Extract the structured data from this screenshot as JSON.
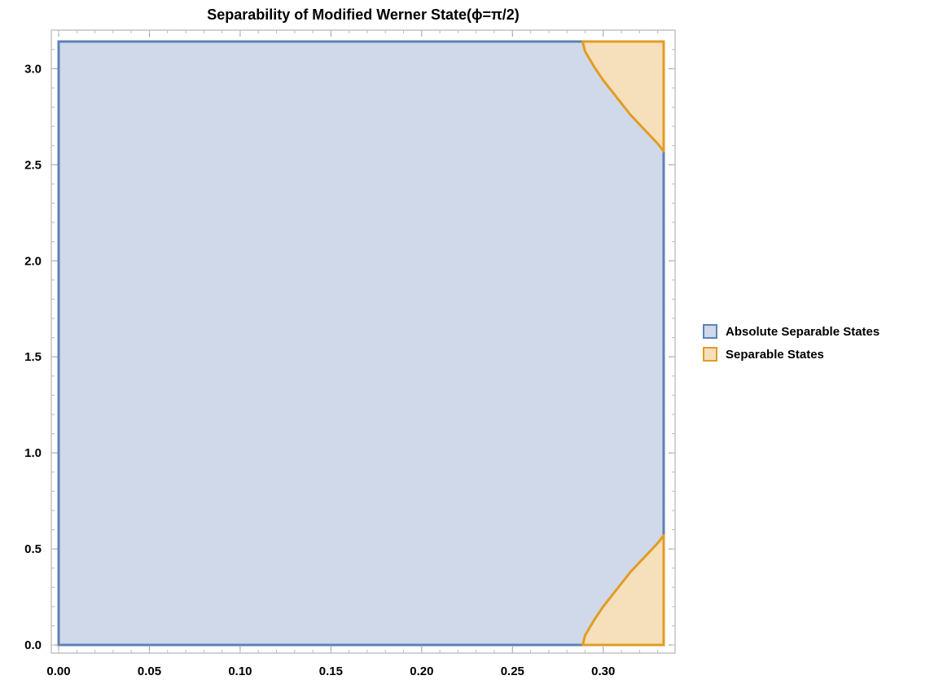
{
  "chart_data": {
    "type": "area",
    "title": "Separability of Modified Werner State(ϕ=π/2)",
    "xlabel": "",
    "ylabel": "",
    "xlim": [
      0,
      0.3333
    ],
    "ylim": [
      0,
      3.1416
    ],
    "x_ticks": [
      "0.00",
      "0.05",
      "0.10",
      "0.15",
      "0.20",
      "0.25",
      "0.30"
    ],
    "y_ticks": [
      "0.0",
      "0.5",
      "1.0",
      "1.5",
      "2.0",
      "2.5",
      "3.0"
    ],
    "grid": false,
    "legend_position": "right",
    "series": [
      {
        "name": "Absolute Separable States",
        "color": "#5e81b5",
        "fill": "#cfd9ea",
        "region": {
          "x": [
            0,
            0.3333
          ],
          "y": [
            0,
            3.1416
          ]
        }
      },
      {
        "name": "Separable States",
        "color": "#e19c24",
        "fill": "#f6dfbb",
        "boundary_bottom": {
          "x": [
            0.2887,
            0.29,
            0.295,
            0.3,
            0.305,
            0.31,
            0.315,
            0.32,
            0.325,
            0.33,
            0.3333
          ],
          "y": [
            0.0,
            0.05,
            0.13,
            0.2,
            0.26,
            0.32,
            0.38,
            0.43,
            0.48,
            0.53,
            0.57
          ]
        },
        "boundary_top": {
          "x": [
            0.2887,
            0.29,
            0.295,
            0.3,
            0.305,
            0.31,
            0.315,
            0.32,
            0.325,
            0.33,
            0.3333
          ],
          "y": [
            3.14,
            3.09,
            3.01,
            2.94,
            2.88,
            2.82,
            2.76,
            2.71,
            2.66,
            2.61,
            2.57
          ]
        }
      }
    ]
  }
}
